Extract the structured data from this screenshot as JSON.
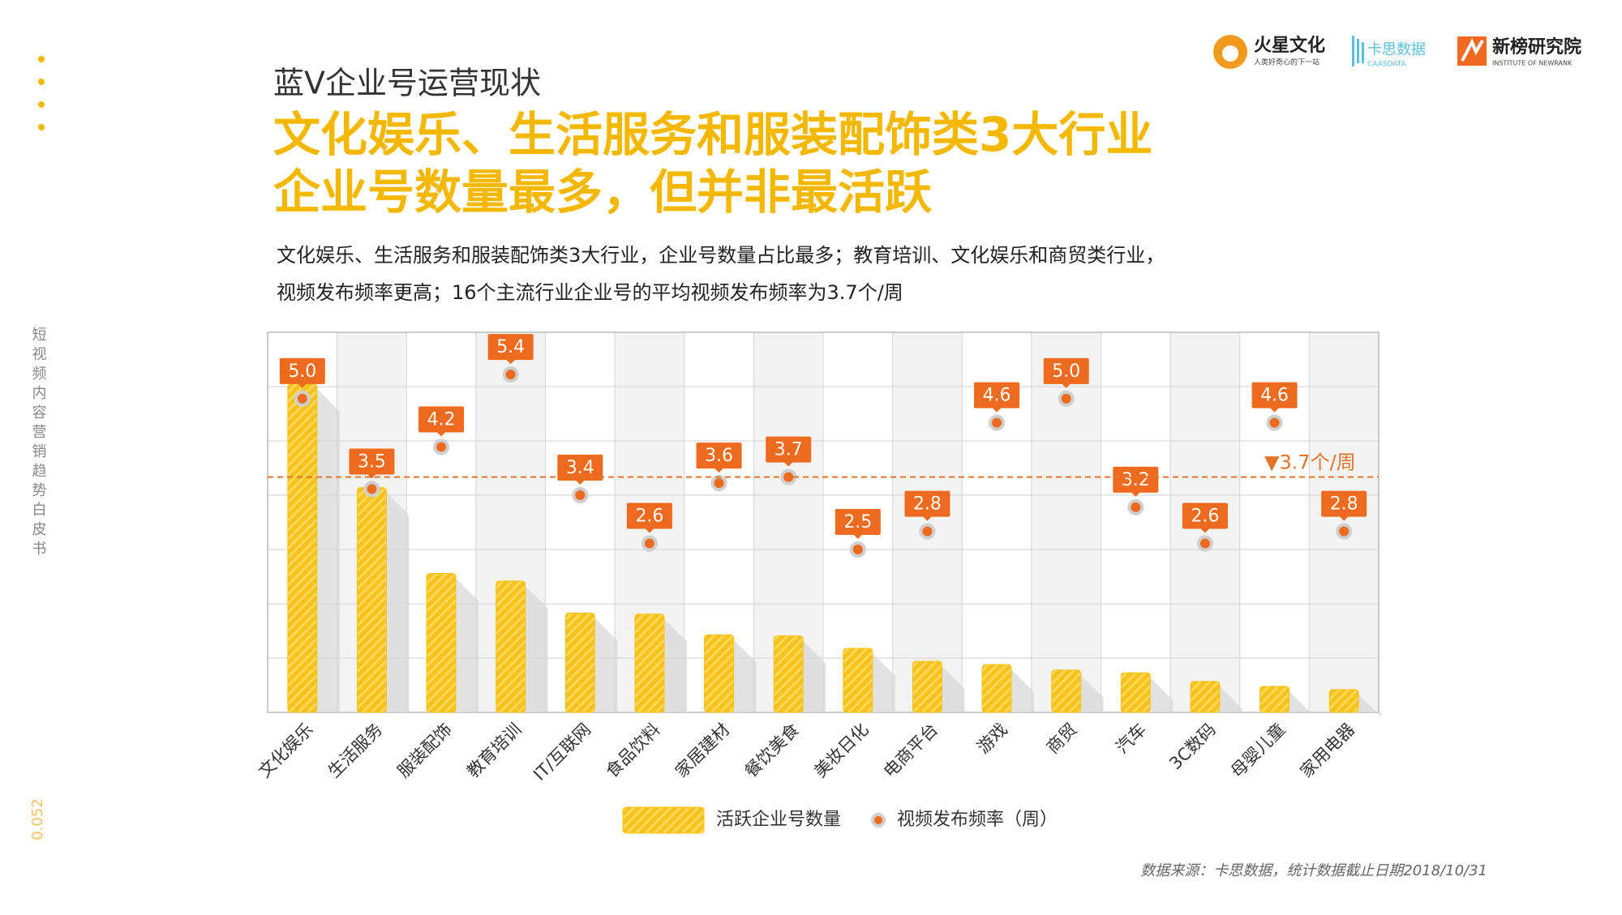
{
  "header": {
    "section": "蓝V企业号运营现状",
    "title_lines": [
      "文化娱乐、生活服务和服装配饰类3大行业",
      "企业号数量最多，但并非最活跃"
    ],
    "subtitle_lines": [
      "文化娱乐、生活服务和服装配饰类3大行业，企业号数量占比最多；教育培训、文化娱乐和商贸类行业，",
      "视频发布频率更高；16个主流行业企业号的平均视频发布频率为3.7个/周"
    ]
  },
  "logos": [
    {
      "name": "火星文化",
      "tagline": "人类好奇心的下一站"
    },
    {
      "name": "卡思数据",
      "tagline": "CAASDATA"
    },
    {
      "name": "新榜研究院",
      "tagline": "INSTITUTE OF NEWRANK"
    }
  ],
  "side_title": "短视频内容营销趋势白皮书",
  "page_number": "0.052",
  "source": "数据来源：卡思数据，统计数据截止日期2018/10/31",
  "chart_data": {
    "type": "bar",
    "categories": [
      "文化娱乐",
      "生活服务",
      "服装配饰",
      "教育培训",
      "IT/互联网",
      "食品饮料",
      "家居建材",
      "餐饮美食",
      "美妆日化",
      "电商平台",
      "游戏",
      "商贸",
      "汽车",
      "3C数码",
      "母婴儿童",
      "家用电器"
    ],
    "ylim": [
      0,
      7
    ],
    "y2lim": [
      -0.2,
      6.1
    ],
    "grid": true,
    "series": [
      {
        "name": "活跃企业号数量",
        "color": "#f8c21c",
        "values": [
          6.05,
          4.14,
          2.56,
          2.42,
          1.83,
          1.81,
          1.43,
          1.41,
          1.18,
          0.94,
          0.88,
          0.78,
          0.73,
          0.57,
          0.48,
          0.42
        ]
      },
      {
        "name": "视频发布频率（周）",
        "color": "#ee6a1e",
        "axis": "y2",
        "type": "scatter",
        "values": [
          5.0,
          3.5,
          4.2,
          5.4,
          3.4,
          2.6,
          3.6,
          3.7,
          2.5,
          2.8,
          4.6,
          5.0,
          3.2,
          2.6,
          4.6,
          2.8
        ],
        "value_labels": [
          "5.0",
          "3.5",
          "4.2",
          "5.4",
          "3.4",
          "2.6",
          "3.6",
          "3.7",
          "2.5",
          "2.8",
          "4.6",
          "5.0",
          "3.2",
          "2.6",
          "4.6",
          "2.8"
        ]
      }
    ],
    "average": {
      "value": 3.7,
      "label": "▼3.7个/周"
    }
  }
}
